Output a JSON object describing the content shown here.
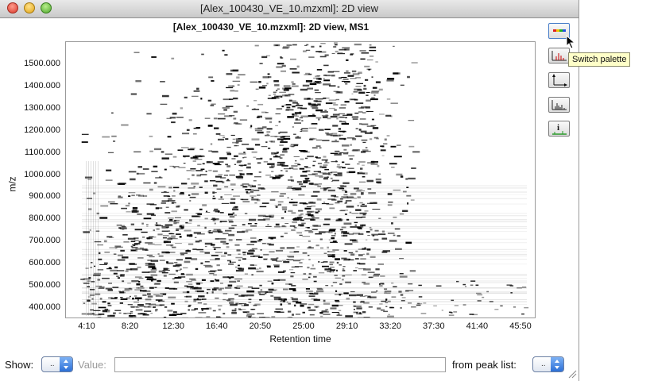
{
  "window": {
    "title": "[Alex_100430_VE_10.mzxml]: 2D view"
  },
  "plot": {
    "title": "[Alex_100430_VE_10.mzxml]: 2D view, MS1"
  },
  "chart_data": {
    "type": "heatmap",
    "title": "[Alex_100430_VE_10.mzxml]: 2D view, MS1",
    "xlabel": "Retention time",
    "ylabel": "m/z",
    "x_ticks": [
      "4:10",
      "8:20",
      "12:30",
      "16:40",
      "20:50",
      "25:00",
      "29:10",
      "33:20",
      "37:30",
      "41:40",
      "45:50"
    ],
    "y_ticks": [
      "1500.000",
      "1400.000",
      "1300.000",
      "1200.000",
      "1100.000",
      "1000.000",
      "900.000",
      "800.000",
      "700.000",
      "600.000",
      "500.000",
      "400.000"
    ],
    "x_range_minutes": [
      1.8,
      46
    ],
    "y_range_mz": [
      350,
      1590
    ],
    "colors": {
      "peaks": "#000000",
      "background": "#ffffff"
    }
  },
  "toolbar": {
    "buttons": [
      {
        "name": "palette-icon",
        "tooltip": "Switch palette"
      },
      {
        "name": "peaks-icon"
      },
      {
        "name": "axes-icon"
      },
      {
        "name": "spectrum-icon"
      },
      {
        "name": "info-icon"
      }
    ],
    "tooltip": "Switch palette"
  },
  "bottom": {
    "show_label": "Show:",
    "show_dropdown": "..",
    "value_label": "Value:",
    "value_input": "",
    "peak_list_label": "from peak list:",
    "peak_list_dropdown": ".."
  }
}
